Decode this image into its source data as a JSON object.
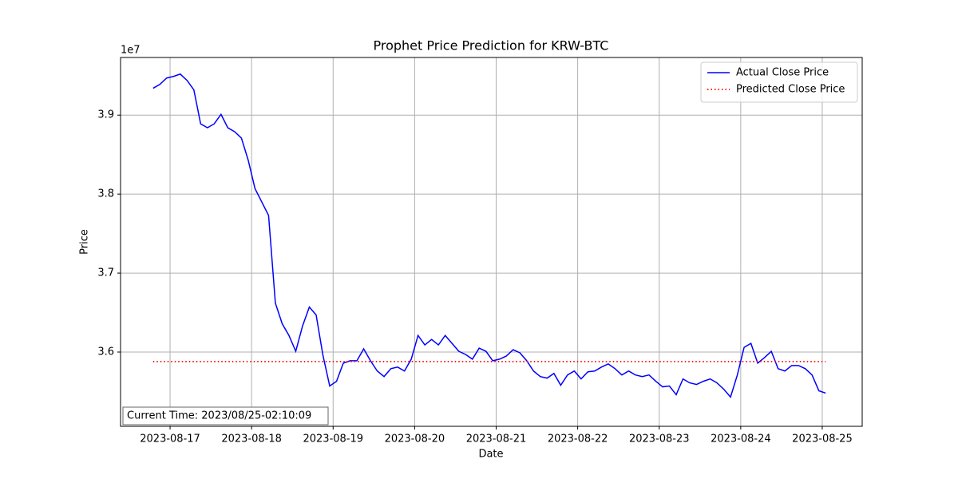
{
  "chart_data": {
    "type": "line",
    "title": "Prophet Price Prediction for KRW-BTC",
    "x_label": "Date",
    "y_label": "Price",
    "y_offset_label": "1e7",
    "annotation": "Current Time: 2023/08/25-02:10:09",
    "legend": "upper right",
    "grid": true,
    "xlim": [
      -4.79,
      104.38
    ],
    "ylim": [
      3.506,
      3.973
    ],
    "xticks": [
      {
        "value": 2.5,
        "label": "2023-08-17"
      },
      {
        "value": 14.5,
        "label": "2023-08-18"
      },
      {
        "value": 26.5,
        "label": "2023-08-19"
      },
      {
        "value": 38.5,
        "label": "2023-08-20"
      },
      {
        "value": 50.5,
        "label": "2023-08-21"
      },
      {
        "value": 62.5,
        "label": "2023-08-22"
      },
      {
        "value": 74.5,
        "label": "2023-08-23"
      },
      {
        "value": 86.5,
        "label": "2023-08-24"
      },
      {
        "value": 98.5,
        "label": "2023-08-25"
      }
    ],
    "yticks": [
      3.6,
      3.7,
      3.8,
      3.9
    ],
    "series": [
      {
        "name": "Actual Close Price",
        "color": "#0000ff",
        "style": "solid",
        "values": [
          3.934,
          3.939,
          3.947,
          3.949,
          3.952,
          3.944,
          3.932,
          3.889,
          3.884,
          3.889,
          3.901,
          3.884,
          3.879,
          3.871,
          3.843,
          3.807,
          3.79,
          3.773,
          3.662,
          3.636,
          3.621,
          3.601,
          3.633,
          3.657,
          3.647,
          3.596,
          3.557,
          3.563,
          3.586,
          3.589,
          3.589,
          3.604,
          3.589,
          3.576,
          3.569,
          3.579,
          3.581,
          3.576,
          3.591,
          3.621,
          3.609,
          3.616,
          3.609,
          3.621,
          3.611,
          3.601,
          3.597,
          3.591,
          3.605,
          3.601,
          3.589,
          3.591,
          3.595,
          3.603,
          3.599,
          3.589,
          3.576,
          3.569,
          3.567,
          3.573,
          3.558,
          3.571,
          3.576,
          3.566,
          3.575,
          3.576,
          3.581,
          3.585,
          3.579,
          3.571,
          3.576,
          3.571,
          3.569,
          3.571,
          3.563,
          3.556,
          3.557,
          3.546,
          3.566,
          3.561,
          3.559,
          3.563,
          3.566,
          3.561,
          3.553,
          3.543,
          3.571,
          3.606,
          3.611,
          3.586,
          3.593,
          3.601,
          3.579,
          3.576,
          3.583,
          3.583,
          3.579,
          3.571,
          3.551,
          3.548
        ]
      },
      {
        "name": "Predicted Close Price",
        "color": "#ff0000",
        "style": "dotted",
        "values": [
          3.588,
          3.588,
          3.588,
          3.588,
          3.588,
          3.588,
          3.588,
          3.588,
          3.588,
          3.588,
          3.588,
          3.588,
          3.588,
          3.588,
          3.588,
          3.588,
          3.588,
          3.588,
          3.588,
          3.588,
          3.588,
          3.588,
          3.588,
          3.588,
          3.588,
          3.588,
          3.588,
          3.588,
          3.588,
          3.588,
          3.588,
          3.588,
          3.588,
          3.588,
          3.588,
          3.588,
          3.588,
          3.588,
          3.588,
          3.588,
          3.588,
          3.588,
          3.588,
          3.588,
          3.588,
          3.588,
          3.588,
          3.588,
          3.588,
          3.588,
          3.588,
          3.588,
          3.588,
          3.588,
          3.588,
          3.588,
          3.588,
          3.588,
          3.588,
          3.588,
          3.588,
          3.588,
          3.588,
          3.588,
          3.588,
          3.588,
          3.588,
          3.588,
          3.588,
          3.588,
          3.588,
          3.588,
          3.588,
          3.588,
          3.588,
          3.588,
          3.588,
          3.588,
          3.588,
          3.588,
          3.588,
          3.588,
          3.588,
          3.588,
          3.588,
          3.588,
          3.588,
          3.588,
          3.588,
          3.588,
          3.588,
          3.588,
          3.588,
          3.588,
          3.588,
          3.588,
          3.588,
          3.588,
          3.588,
          3.588
        ]
      }
    ]
  }
}
